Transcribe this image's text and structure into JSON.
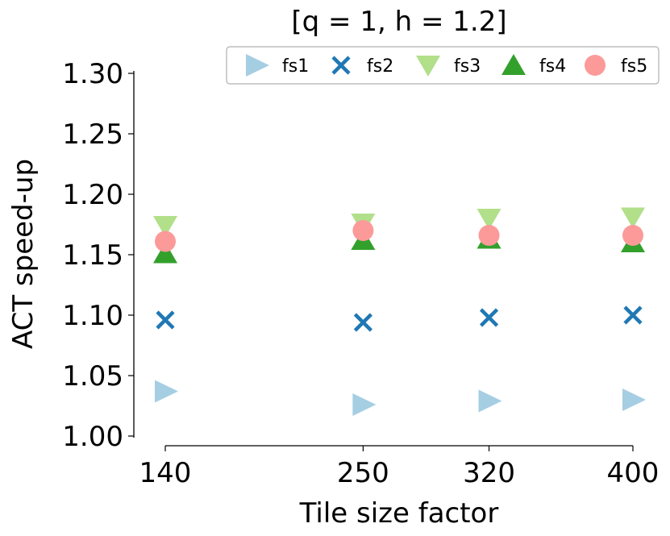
{
  "chart_data": {
    "type": "scatter",
    "title": "[q = 1, h = 1.2]",
    "xlabel": "Tile size factor",
    "ylabel": "ACT speed-up",
    "categories": [
      "140",
      "250",
      "320",
      "400"
    ],
    "x": [
      140,
      250,
      320,
      400
    ],
    "ylim": [
      1.0,
      1.3
    ],
    "yticks": [
      "1.00",
      "1.05",
      "1.10",
      "1.15",
      "1.20",
      "1.25",
      "1.30"
    ],
    "grid": false,
    "legend": "top-right",
    "series": [
      {
        "name": "fs1",
        "marker": "triangle-right",
        "color": "#a6cee3",
        "values": [
          1.037,
          1.026,
          1.029,
          1.03
        ]
      },
      {
        "name": "fs2",
        "marker": "x",
        "color": "#1f78b4",
        "values": [
          1.096,
          1.094,
          1.098,
          1.1
        ]
      },
      {
        "name": "fs3",
        "marker": "triangle-down",
        "color": "#b2df8a",
        "values": [
          1.174,
          1.176,
          1.18,
          1.181
        ]
      },
      {
        "name": "fs4",
        "marker": "triangle-up",
        "color": "#33a02c",
        "values": [
          1.151,
          1.162,
          1.163,
          1.16
        ]
      },
      {
        "name": "fs5",
        "marker": "circle",
        "color": "#fb9a99",
        "values": [
          1.161,
          1.17,
          1.166,
          1.166
        ]
      }
    ]
  }
}
